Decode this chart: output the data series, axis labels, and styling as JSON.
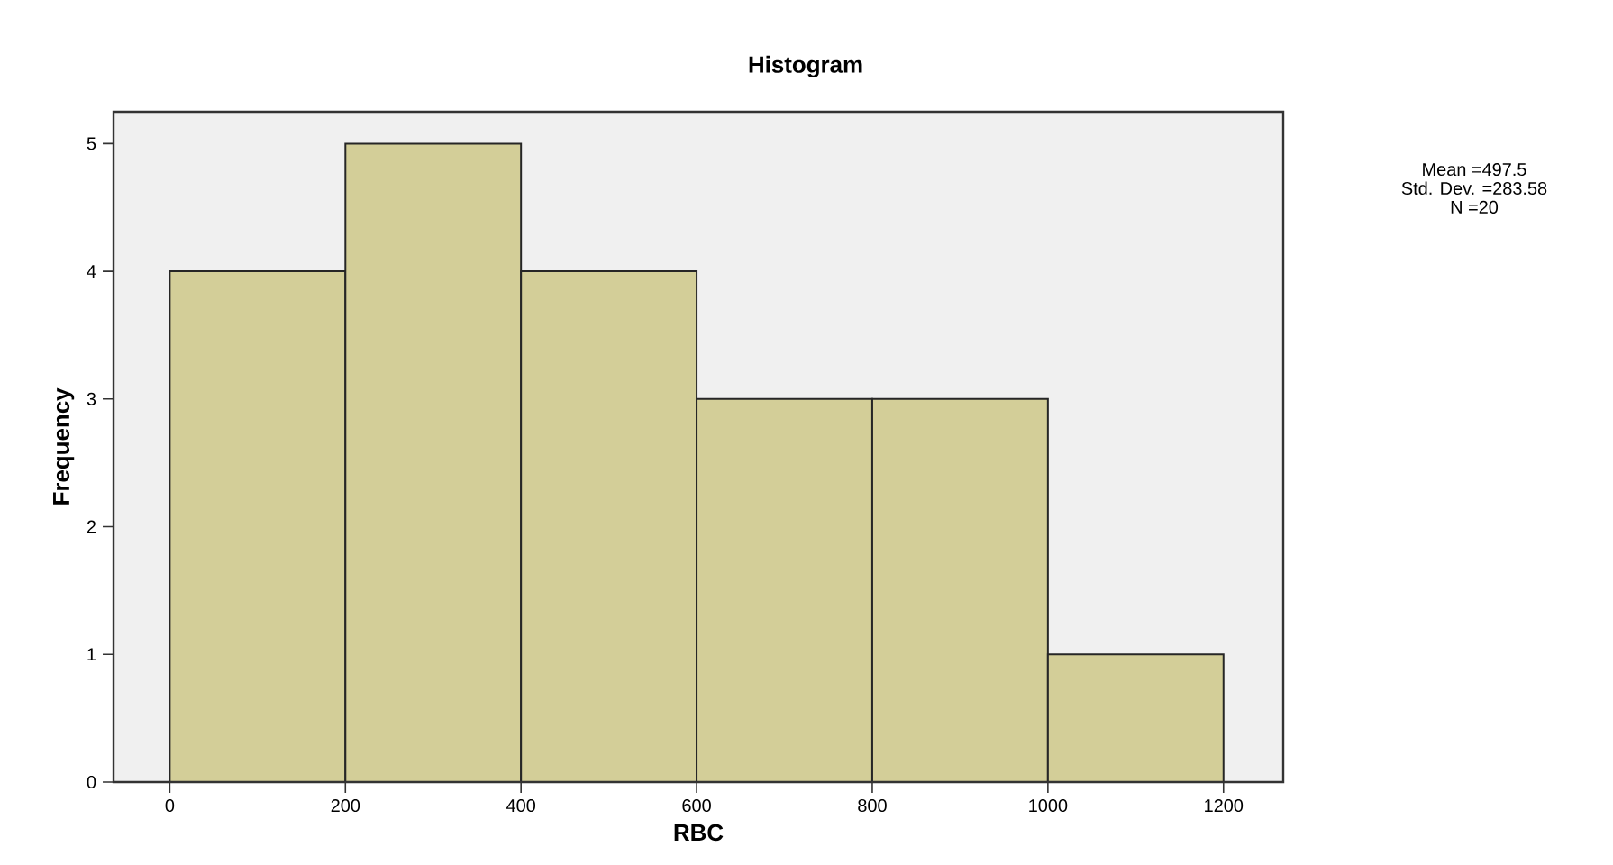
{
  "chart_data": {
    "type": "histogram",
    "title": "Histogram",
    "xlabel": "RBC",
    "ylabel": "Frequency",
    "bins": [
      0,
      200,
      400,
      600,
      800,
      1000,
      1200
    ],
    "values": [
      4,
      5,
      4,
      3,
      3,
      1
    ],
    "color": "#d3ce98",
    "xlim": [
      -64,
      1268
    ],
    "ylim": [
      0,
      5.25
    ],
    "xticks": [
      0,
      200,
      400,
      600,
      800,
      1000,
      1200
    ],
    "yticks": [
      0,
      1,
      2,
      3,
      4,
      5
    ],
    "grid": false,
    "annotations": [
      "Mean =497.5",
      "Std. Dev. =283.58",
      "N =20"
    ]
  }
}
